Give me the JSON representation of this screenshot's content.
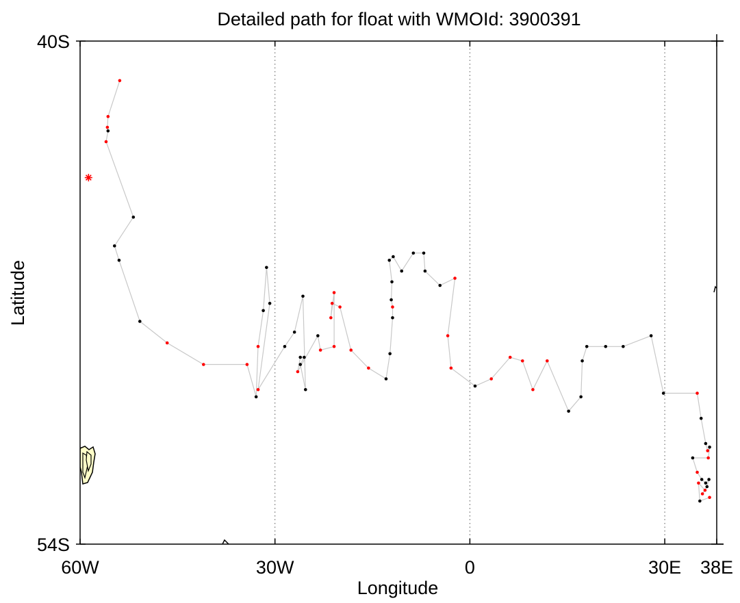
{
  "chart_data": {
    "type": "scatter",
    "title": "Detailed path for float with WMOId: 3900391",
    "xlabel": "Longitude",
    "ylabel": "Latitude",
    "xlim": [
      -60,
      38
    ],
    "ylim": [
      -54,
      -40
    ],
    "x_ticks": [
      {
        "value": -60,
        "label": "60W"
      },
      {
        "value": -30,
        "label": "30W"
      },
      {
        "value": 0,
        "label": "0"
      },
      {
        "value": 30,
        "label": "30E"
      },
      {
        "value": 38,
        "label": "38E"
      }
    ],
    "y_ticks": [
      {
        "value": -40,
        "label": "40S"
      },
      {
        "value": -54,
        "label": "54S"
      }
    ],
    "grid": "dotted vertical lines at 30W, 0, 30E",
    "colors": {
      "path": "#c8c8c8",
      "point_normal": "#000000",
      "point_flagged": "#ff0000",
      "deploy_marker": "#ff0000",
      "land_fill": "#ffffc8"
    },
    "deployment": {
      "lon": -58.7,
      "lat": -43.8,
      "marker": "asterisk"
    },
    "track": [
      {
        "lon": -53.9,
        "lat": -41.1,
        "flag": "red"
      },
      {
        "lon": -55.7,
        "lat": -42.1,
        "flag": "red"
      },
      {
        "lon": -55.8,
        "lat": -42.4,
        "flag": "red"
      },
      {
        "lon": -55.7,
        "lat": -42.5,
        "flag": "black"
      },
      {
        "lon": -56.0,
        "lat": -42.8,
        "flag": "red"
      },
      {
        "lon": -51.8,
        "lat": -44.9,
        "flag": "black"
      },
      {
        "lon": -54.7,
        "lat": -45.7,
        "flag": "black"
      },
      {
        "lon": -54.0,
        "lat": -46.1,
        "flag": "black"
      },
      {
        "lon": -50.8,
        "lat": -47.8,
        "flag": "black"
      },
      {
        "lon": -46.6,
        "lat": -48.4,
        "flag": "red"
      },
      {
        "lon": -41.0,
        "lat": -49.0,
        "flag": "red"
      },
      {
        "lon": -34.3,
        "lat": -49.0,
        "flag": "red"
      },
      {
        "lon": -32.9,
        "lat": -49.9,
        "flag": "black"
      },
      {
        "lon": -32.6,
        "lat": -48.5,
        "flag": "red"
      },
      {
        "lon": -31.8,
        "lat": -47.5,
        "flag": "black"
      },
      {
        "lon": -31.3,
        "lat": -46.3,
        "flag": "black"
      },
      {
        "lon": -30.8,
        "lat": -47.3,
        "flag": "black"
      },
      {
        "lon": -32.6,
        "lat": -49.7,
        "flag": "red"
      },
      {
        "lon": -28.5,
        "lat": -48.5,
        "flag": "black"
      },
      {
        "lon": -27.0,
        "lat": -48.1,
        "flag": "black"
      },
      {
        "lon": -25.7,
        "lat": -47.1,
        "flag": "black"
      },
      {
        "lon": -25.3,
        "lat": -49.7,
        "flag": "black"
      },
      {
        "lon": -26.1,
        "lat": -49.0,
        "flag": "black"
      },
      {
        "lon": -25.5,
        "lat": -48.8,
        "flag": "black"
      },
      {
        "lon": -26.1,
        "lat": -48.8,
        "flag": "black"
      },
      {
        "lon": -26.5,
        "lat": -49.2,
        "flag": "red"
      },
      {
        "lon": -23.4,
        "lat": -48.2,
        "flag": "black"
      },
      {
        "lon": -23.0,
        "lat": -48.6,
        "flag": "red"
      },
      {
        "lon": -20.9,
        "lat": -48.5,
        "flag": "red"
      },
      {
        "lon": -20.9,
        "lat": -47.0,
        "flag": "red"
      },
      {
        "lon": -21.4,
        "lat": -47.7,
        "flag": "red"
      },
      {
        "lon": -21.2,
        "lat": -47.3,
        "flag": "red"
      },
      {
        "lon": -20.0,
        "lat": -47.4,
        "flag": "red"
      },
      {
        "lon": -18.3,
        "lat": -48.6,
        "flag": "red"
      },
      {
        "lon": -15.6,
        "lat": -49.1,
        "flag": "red"
      },
      {
        "lon": -12.9,
        "lat": -49.4,
        "flag": "black"
      },
      {
        "lon": -12.3,
        "lat": -48.7,
        "flag": "black"
      },
      {
        "lon": -11.9,
        "lat": -47.7,
        "flag": "black"
      },
      {
        "lon": -11.9,
        "lat": -47.4,
        "flag": "red"
      },
      {
        "lon": -12.1,
        "lat": -47.2,
        "flag": "black"
      },
      {
        "lon": -12.0,
        "lat": -46.7,
        "flag": "black"
      },
      {
        "lon": -12.4,
        "lat": -46.1,
        "flag": "black"
      },
      {
        "lon": -11.8,
        "lat": -46.0,
        "flag": "black"
      },
      {
        "lon": -10.5,
        "lat": -46.4,
        "flag": "black"
      },
      {
        "lon": -8.7,
        "lat": -45.9,
        "flag": "black"
      },
      {
        "lon": -7.1,
        "lat": -45.9,
        "flag": "black"
      },
      {
        "lon": -6.9,
        "lat": -46.4,
        "flag": "black"
      },
      {
        "lon": -4.6,
        "lat": -46.8,
        "flag": "black"
      },
      {
        "lon": -2.3,
        "lat": -46.6,
        "flag": "red"
      },
      {
        "lon": -3.4,
        "lat": -48.2,
        "flag": "red"
      },
      {
        "lon": -2.9,
        "lat": -49.1,
        "flag": "red"
      },
      {
        "lon": 0.8,
        "lat": -49.6,
        "flag": "black"
      },
      {
        "lon": 3.3,
        "lat": -49.4,
        "flag": "red"
      },
      {
        "lon": 6.2,
        "lat": -48.8,
        "flag": "red"
      },
      {
        "lon": 8.1,
        "lat": -48.9,
        "flag": "red"
      },
      {
        "lon": 9.7,
        "lat": -49.7,
        "flag": "red"
      },
      {
        "lon": 11.9,
        "lat": -48.9,
        "flag": "red"
      },
      {
        "lon": 15.2,
        "lat": -50.3,
        "flag": "black"
      },
      {
        "lon": 17.1,
        "lat": -49.9,
        "flag": "black"
      },
      {
        "lon": 17.3,
        "lat": -48.9,
        "flag": "black"
      },
      {
        "lon": 18.0,
        "lat": -48.5,
        "flag": "black"
      },
      {
        "lon": 20.9,
        "lat": -48.5,
        "flag": "black"
      },
      {
        "lon": 23.6,
        "lat": -48.5,
        "flag": "black"
      },
      {
        "lon": 27.9,
        "lat": -48.2,
        "flag": "black"
      },
      {
        "lon": 29.8,
        "lat": -49.8,
        "flag": "black"
      },
      {
        "lon": 35.0,
        "lat": -49.8,
        "flag": "red"
      },
      {
        "lon": 35.6,
        "lat": -50.5,
        "flag": "black"
      },
      {
        "lon": 36.3,
        "lat": -51.2,
        "flag": "black"
      },
      {
        "lon": 36.6,
        "lat": -51.4,
        "flag": "red"
      },
      {
        "lon": 36.9,
        "lat": -51.3,
        "flag": "black"
      },
      {
        "lon": 36.7,
        "lat": -51.6,
        "flag": "red"
      },
      {
        "lon": 34.3,
        "lat": -51.6,
        "flag": "black"
      },
      {
        "lon": 35.0,
        "lat": -52.0,
        "flag": "red"
      },
      {
        "lon": 35.7,
        "lat": -52.2,
        "flag": "black"
      },
      {
        "lon": 36.3,
        "lat": -52.3,
        "flag": "black"
      },
      {
        "lon": 36.8,
        "lat": -52.2,
        "flag": "black"
      },
      {
        "lon": 36.5,
        "lat": -52.4,
        "flag": "black"
      },
      {
        "lon": 35.8,
        "lat": -52.6,
        "flag": "red"
      },
      {
        "lon": 36.2,
        "lat": -52.5,
        "flag": "red"
      },
      {
        "lon": 35.2,
        "lat": -52.3,
        "flag": "red"
      },
      {
        "lon": 35.4,
        "lat": -52.8,
        "flag": "black"
      },
      {
        "lon": 36.9,
        "lat": -52.7,
        "flag": "red"
      }
    ]
  }
}
